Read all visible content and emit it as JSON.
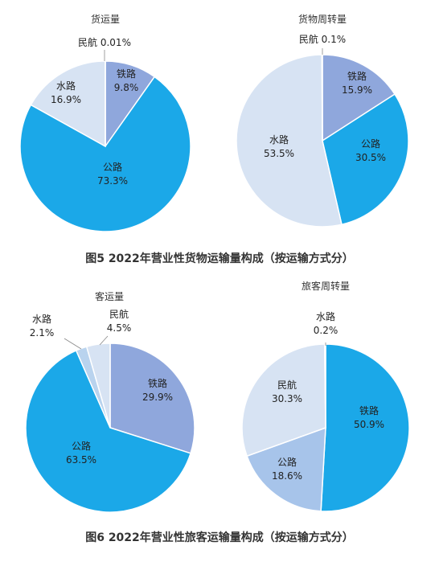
{
  "figures": [
    {
      "caption": "图5   2022年营业性货物运输量构成（按运输方式分）"
    },
    {
      "caption": "图6   2022年营业性旅客运输量构成（按运输方式分）"
    }
  ],
  "chart_data": [
    {
      "type": "pie",
      "title": "货运量",
      "categories": [
        "铁路",
        "公路",
        "水路",
        "民航"
      ],
      "values": [
        9.8,
        73.3,
        16.9,
        0.01
      ],
      "value_labels": [
        "9.8%",
        "73.3%",
        "16.9%",
        "0.01%"
      ],
      "colors": [
        "#8fa7dc",
        "#1ba8e8",
        "#d7e3f3",
        "#cfdcef"
      ]
    },
    {
      "type": "pie",
      "title": "货物周转量",
      "categories": [
        "铁路",
        "公路",
        "水路",
        "民航"
      ],
      "values": [
        15.9,
        30.5,
        53.5,
        0.1
      ],
      "value_labels": [
        "15.9%",
        "30.5%",
        "53.5%",
        "0.1%"
      ],
      "colors": [
        "#8fa7dc",
        "#1ba8e8",
        "#d7e3f3",
        "#cfdcef"
      ]
    },
    {
      "type": "pie",
      "title": "客运量",
      "categories": [
        "铁路",
        "公路",
        "水路",
        "民航"
      ],
      "values": [
        29.9,
        63.5,
        2.1,
        4.5
      ],
      "value_labels": [
        "29.9%",
        "63.5%",
        "2.1%",
        "4.5%"
      ],
      "colors": [
        "#8fa7dc",
        "#1ba8e8",
        "#b9d3ee",
        "#d7e3f3"
      ]
    },
    {
      "type": "pie",
      "title": "旅客周转量",
      "categories": [
        "铁路",
        "公路",
        "民航",
        "水路"
      ],
      "values": [
        50.9,
        18.6,
        30.3,
        0.2
      ],
      "value_labels": [
        "50.9%",
        "18.6%",
        "30.3%",
        "0.2%"
      ],
      "colors": [
        "#1ba8e8",
        "#a7c4ea",
        "#d7e3f3",
        "#cfdcef"
      ]
    }
  ]
}
